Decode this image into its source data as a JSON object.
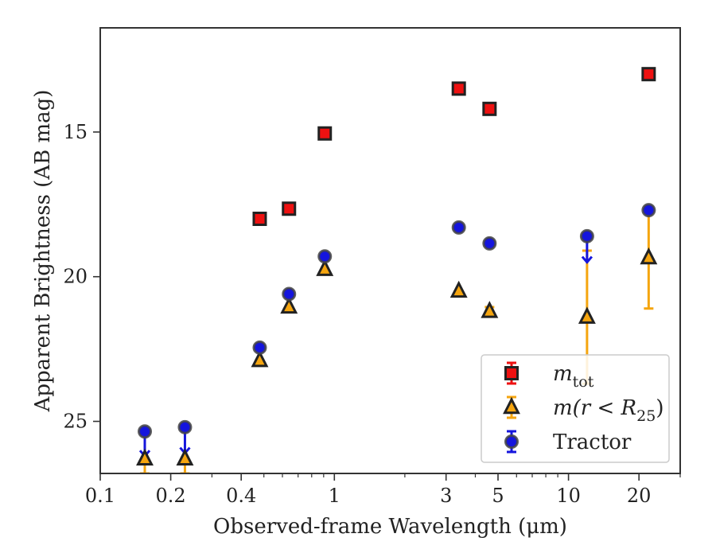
{
  "chart_data": {
    "type": "scatter",
    "xlabel": "Observed-frame Wavelength (μm)",
    "ylabel": "Apparent Brightness (AB mag)",
    "xscale": "log",
    "xlim": [
      0.1,
      30
    ],
    "ylim": [
      26.8,
      11.4
    ],
    "y_inverted": true,
    "grid": false,
    "legend_position": "lower-right",
    "x_ticks": [
      0.1,
      0.2,
      0.4,
      1,
      3,
      5,
      10,
      20
    ],
    "x_tick_labels": [
      "0.1",
      "0.2",
      "0.4",
      "1",
      "3",
      "5",
      "10",
      "20"
    ],
    "y_ticks": [
      15,
      20,
      25
    ],
    "y_tick_labels": [
      "15",
      "20",
      "25"
    ],
    "series": [
      {
        "name": "m_tot",
        "marker": "square",
        "color": "#ee1111",
        "points": [
          {
            "x": 0.48,
            "y": 18.0
          },
          {
            "x": 0.64,
            "y": 17.65
          },
          {
            "x": 0.91,
            "y": 15.05
          },
          {
            "x": 3.4,
            "y": 13.5
          },
          {
            "x": 4.6,
            "y": 14.2
          },
          {
            "x": 22,
            "y": 13.0
          }
        ]
      },
      {
        "name": "m(r < R25)",
        "marker": "triangle",
        "color": "#f5a50f",
        "points": [
          {
            "x": 0.155,
            "y": 26.3,
            "err_low": 0.5,
            "err_high": 0
          },
          {
            "x": 0.23,
            "y": 26.3,
            "err_low": 0.5,
            "err_high": 0
          },
          {
            "x": 0.48,
            "y": 22.9
          },
          {
            "x": 0.64,
            "y": 21.05
          },
          {
            "x": 0.91,
            "y": 19.75
          },
          {
            "x": 3.4,
            "y": 20.5
          },
          {
            "x": 4.6,
            "y": 21.2,
            "err_low": 0,
            "err_high": 0.15
          },
          {
            "x": 12,
            "y": 21.4,
            "err_low": 2.3,
            "err_high": 2.3
          },
          {
            "x": 22,
            "y": 19.35,
            "err_low": 1.75,
            "err_high": 1.75
          }
        ]
      },
      {
        "name": "Tractor",
        "marker": "circle",
        "color": "#1515dd",
        "points": [
          {
            "x": 0.155,
            "y": 25.35,
            "upper_limit": true,
            "arrow_to": 26.2
          },
          {
            "x": 0.23,
            "y": 25.2,
            "upper_limit": true,
            "arrow_to": 26.1
          },
          {
            "x": 0.48,
            "y": 22.45
          },
          {
            "x": 0.64,
            "y": 20.6
          },
          {
            "x": 0.91,
            "y": 19.3
          },
          {
            "x": 3.4,
            "y": 18.3
          },
          {
            "x": 4.6,
            "y": 18.85
          },
          {
            "x": 12,
            "y": 18.6,
            "upper_limit": true,
            "arrow_to": 19.5
          },
          {
            "x": 22,
            "y": 17.7
          }
        ]
      }
    ]
  },
  "legend": {
    "items": [
      {
        "marker": "square",
        "base": "m",
        "sub": "tot",
        "color": "#ee1111"
      },
      {
        "marker": "triangle",
        "base": "m(r < R",
        "sub": "25",
        "tail": ")",
        "color": "#f5a50f"
      },
      {
        "marker": "circle",
        "label": "Tractor",
        "color": "#1515dd"
      }
    ]
  }
}
